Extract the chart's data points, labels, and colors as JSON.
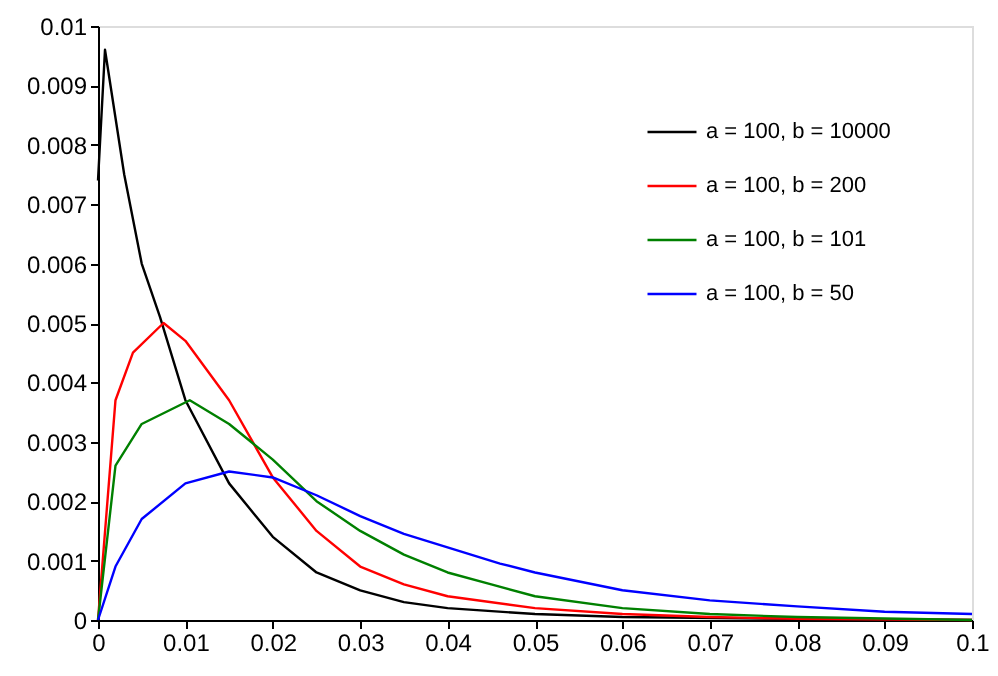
{
  "chart_data": {
    "type": "line",
    "xlim": [
      0,
      0.1
    ],
    "xticks": [
      0,
      0.01,
      0.02,
      0.03,
      0.04,
      0.05,
      0.06,
      0.07,
      0.08,
      0.09,
      0.1
    ],
    "ylim": [
      0,
      0.01
    ],
    "yticks": [
      0,
      0.001,
      0.002,
      0.003,
      0.004,
      0.005,
      0.006,
      0.007,
      0.008,
      0.009,
      0.01
    ],
    "grid": false,
    "legend": "top right",
    "marker": "none",
    "line_style": "solid",
    "series": [
      {
        "name": "a = 100, b = 10000",
        "color": "#000000",
        "x": [
          0,
          0.0008,
          0.003,
          0.005,
          0.0071,
          0.01,
          0.015,
          0.02,
          0.025,
          0.03,
          0.035,
          0.04,
          0.05,
          0.06,
          0.08,
          0.1
        ],
        "values": [
          0.0074,
          0.0096,
          0.0075,
          0.006,
          0.0051,
          0.0037,
          0.0023,
          0.0014,
          0.0008,
          0.0005,
          0.0003,
          0.0002,
          0.0001,
          5e-05,
          2e-05,
          0
        ]
      },
      {
        "name": "a = 100, b = 200",
        "color": "#ff0000",
        "x": [
          0,
          0.002,
          0.004,
          0.0075,
          0.01,
          0.015,
          0.02,
          0.025,
          0.03,
          0.035,
          0.04,
          0.05,
          0.06,
          0.07,
          0.08,
          0.1
        ],
        "values": [
          0,
          0.0037,
          0.0045,
          0.005,
          0.0047,
          0.0037,
          0.0024,
          0.0015,
          0.0009,
          0.0006,
          0.0004,
          0.0002,
          0.0001,
          5e-05,
          2e-05,
          0
        ]
      },
      {
        "name": "a = 100, b = 101",
        "color": "#008000",
        "x": [
          0,
          0.002,
          0.005,
          0.0105,
          0.015,
          0.02,
          0.025,
          0.03,
          0.035,
          0.04,
          0.045,
          0.05,
          0.06,
          0.07,
          0.08,
          0.1
        ],
        "values": [
          0,
          0.0026,
          0.0033,
          0.0037,
          0.0033,
          0.0027,
          0.002,
          0.0015,
          0.0011,
          0.0008,
          0.0006,
          0.0004,
          0.0002,
          0.0001,
          5e-05,
          0
        ]
      },
      {
        "name": "a = 100, b = 50",
        "color": "#0000ff",
        "x": [
          0,
          0.002,
          0.005,
          0.01,
          0.015,
          0.02,
          0.025,
          0.03,
          0.035,
          0.046,
          0.05,
          0.06,
          0.07,
          0.08,
          0.09,
          0.1
        ],
        "values": [
          0,
          0.0009,
          0.0017,
          0.0023,
          0.0025,
          0.0024,
          0.0021,
          0.00175,
          0.00145,
          0.00095,
          0.0008,
          0.0005,
          0.00033,
          0.00023,
          0.00014,
          0.0001
        ]
      }
    ]
  }
}
